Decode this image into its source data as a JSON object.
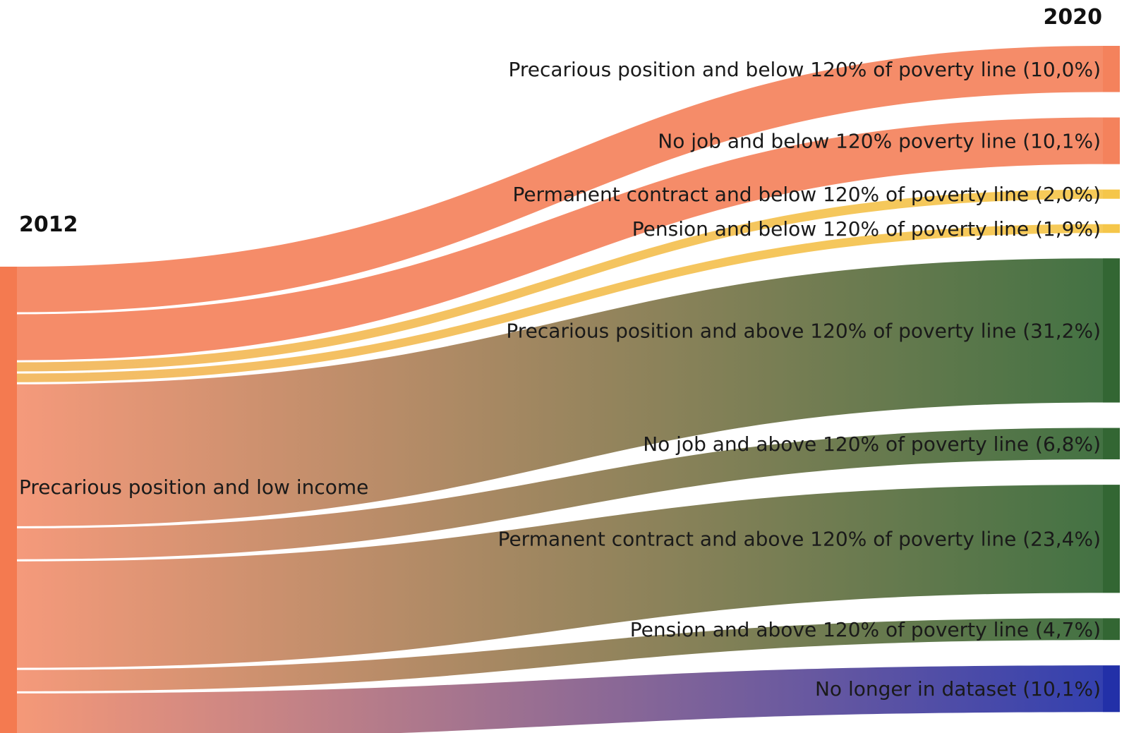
{
  "chart_data": {
    "type": "sankey",
    "source_year": "2012",
    "target_year": "2020",
    "source": {
      "label": "Precarious position and low income",
      "color": "#f47a50"
    },
    "flows": [
      {
        "label": "Precarious position and below 120% of poverty line (10,0%)",
        "value": 10.0,
        "color": "#f4825c",
        "end_color": "#f4825c"
      },
      {
        "label": "No job and below 120% poverty line (10,1%)",
        "value": 10.1,
        "color": "#f4825c",
        "end_color": "#f4825c"
      },
      {
        "label": "Permanent contract and below 120% of poverty line (2,0%)",
        "value": 2.0,
        "color": "#f2b65a",
        "end_color": "#f5c64a"
      },
      {
        "label": "Pension and below 120% of poverty line (1,9%)",
        "value": 1.9,
        "color": "#f2b65a",
        "end_color": "#f5c64a"
      },
      {
        "label": "Precarious position and above 120% of poverty line (31,2%)",
        "value": 31.2,
        "color": "#f49170",
        "end_color": "#336633"
      },
      {
        "label": "No job and above 120% of poverty line (6,8%)",
        "value": 6.8,
        "color": "#f49170",
        "end_color": "#336633"
      },
      {
        "label": "Permanent contract and above 120% of poverty line (23,4%)",
        "value": 23.4,
        "color": "#f49170",
        "end_color": "#336633"
      },
      {
        "label": "Pension and above 120% of poverty line (4,7%)",
        "value": 4.7,
        "color": "#f49170",
        "end_color": "#336633"
      },
      {
        "label": "No longer in dataset (10,1%)",
        "value": 10.1,
        "color": "#f4906c",
        "end_color": "#2230a8"
      }
    ]
  }
}
